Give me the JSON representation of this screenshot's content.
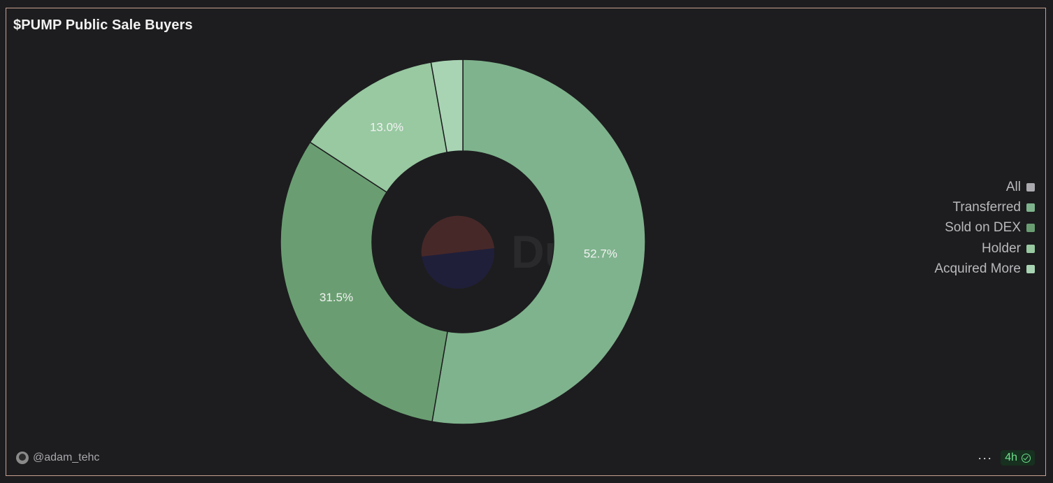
{
  "card": {
    "title": "$PUMP Public Sale Buyers",
    "author": "@adam_tehc",
    "refresh": "4h",
    "more_label": "···"
  },
  "watermark": "Dune",
  "chart_data": {
    "type": "pie",
    "title": "$PUMP Public Sale Buyers",
    "donut": true,
    "legend_position": "right",
    "slices": [
      {
        "name": "Transferred",
        "value": 52.7,
        "label": "52.7%",
        "color": "#7fb38d"
      },
      {
        "name": "Sold on DEX",
        "value": 31.5,
        "label": "31.5%",
        "color": "#6a9e72"
      },
      {
        "name": "Holder",
        "value": 13.0,
        "label": "13.0%",
        "color": "#98c9a1"
      },
      {
        "name": "Acquired More",
        "value": 2.8,
        "label": "",
        "color": "#a8d4b3"
      }
    ],
    "legend": [
      {
        "name": "All",
        "color": "#a9a9ae"
      },
      {
        "name": "Transferred",
        "color": "#7fb38d"
      },
      {
        "name": "Sold on DEX",
        "color": "#6a9e72"
      },
      {
        "name": "Holder",
        "color": "#98c9a1"
      },
      {
        "name": "Acquired More",
        "color": "#a8d4b3"
      }
    ]
  }
}
